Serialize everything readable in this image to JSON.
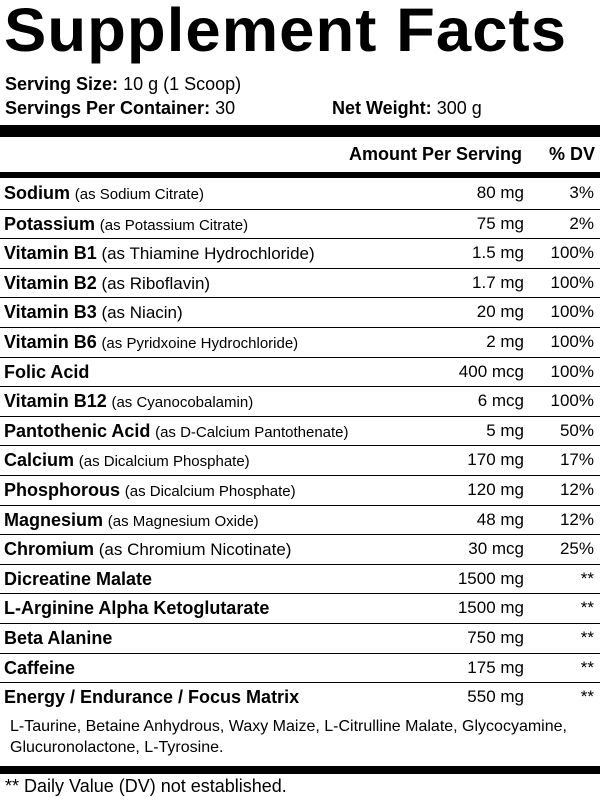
{
  "panel": {
    "title": "Supplement Facts",
    "serving_size_label": "Serving Size:",
    "serving_size_value": "10 g (1 Scoop)",
    "servings_label": "Servings Per Container:",
    "servings_value": "30",
    "net_weight_label": "Net Weight:",
    "net_weight_value": "300 g",
    "amount_header": "Amount Per Serving",
    "dv_header": "% DV",
    "rows": [
      {
        "name": "Sodium",
        "source": "(as Sodium Citrate)",
        "amount": "80 mg",
        "dv": "3%"
      },
      {
        "name": "Potassium",
        "source": "(as Potassium Citrate)",
        "amount": "75 mg",
        "dv": "2%"
      },
      {
        "name": "Vitamin B1",
        "source": "(as Thiamine Hydrochloride)",
        "amount": "1.5 mg",
        "dv": "100%"
      },
      {
        "name": "Vitamin B2",
        "source": "(as Riboflavin)",
        "amount": "1.7 mg",
        "dv": "100%"
      },
      {
        "name": "Vitamin B3",
        "source": "(as Niacin)",
        "amount": "20 mg",
        "dv": "100%"
      },
      {
        "name": "Vitamin B6",
        "source": "(as Pyridxoine Hydrochloride)",
        "amount": "2 mg",
        "dv": "100%"
      },
      {
        "name": "Folic Acid",
        "source": "",
        "amount": "400 mcg",
        "dv": "100%"
      },
      {
        "name": "Vitamin B12",
        "source": "(as Cyanocobalamin)",
        "amount": "6 mcg",
        "dv": "100%"
      },
      {
        "name": "Pantothenic Acid",
        "source": "(as D-Calcium Pantothenate)",
        "amount": "5 mg",
        "dv": "50%"
      },
      {
        "name": "Calcium",
        "source": "(as Dicalcium Phosphate)",
        "amount": "170 mg",
        "dv": "17%"
      },
      {
        "name": "Phosphorous",
        "source": "(as Dicalcium Phosphate)",
        "amount": "120 mg",
        "dv": "12%"
      },
      {
        "name": "Magnesium",
        "source": "(as Magnesium Oxide)",
        "amount": "48 mg",
        "dv": "12%"
      },
      {
        "name": "Chromium",
        "source": "(as Chromium Nicotinate)",
        "amount": "30 mcg",
        "dv": "25%"
      },
      {
        "name": "Dicreatine Malate",
        "source": "",
        "amount": "1500 mg",
        "dv": "**"
      },
      {
        "name": "L-Arginine Alpha Ketoglutarate",
        "source": "",
        "amount": "1500 mg",
        "dv": "**"
      },
      {
        "name": "Beta Alanine",
        "source": "",
        "amount": "750 mg",
        "dv": "**"
      },
      {
        "name": "Caffeine",
        "source": "",
        "amount": "175 mg",
        "dv": "**"
      },
      {
        "name": "Energy / Endurance / Focus Matrix",
        "source": "",
        "amount": "550 mg",
        "dv": "**"
      }
    ],
    "blend_ingredients": "L-Taurine, Betaine Anhydrous, Waxy Maize, L-Citrulline Malate, Glycocyamine, Glucuronolactone, L-Tyrosine.",
    "footnote": "** Daily Value (DV) not established."
  }
}
